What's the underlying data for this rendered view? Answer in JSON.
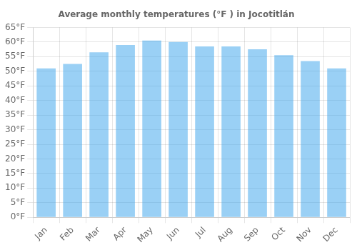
{
  "chart_data": {
    "type": "bar",
    "title": "Average monthly temperatures (°F ) in Jocotitlán",
    "categories": [
      "Jan",
      "Feb",
      "Mar",
      "Apr",
      "May",
      "Jun",
      "Jul",
      "Aug",
      "Sep",
      "Oct",
      "Nov",
      "Dec"
    ],
    "values": [
      51.0,
      52.5,
      56.5,
      59.0,
      60.5,
      60.0,
      58.5,
      58.5,
      57.5,
      55.5,
      53.5,
      51.0
    ],
    "ylim": [
      0,
      65
    ],
    "yticks": [
      {
        "value": 0,
        "label": "0°F"
      },
      {
        "value": 5,
        "label": "5°F"
      },
      {
        "value": 10,
        "label": "10°F"
      },
      {
        "value": 15,
        "label": "15°F"
      },
      {
        "value": 20,
        "label": "20°F"
      },
      {
        "value": 25,
        "label": "25°F"
      },
      {
        "value": 30,
        "label": "30°F"
      },
      {
        "value": 35,
        "label": "35°F"
      },
      {
        "value": 40,
        "label": "40°F"
      },
      {
        "value": 45,
        "label": "45°F"
      },
      {
        "value": 50,
        "label": "50°F"
      },
      {
        "value": 55,
        "label": "55°F"
      },
      {
        "value": 60,
        "label": "60°F"
      },
      {
        "value": 65,
        "label": "65°F"
      }
    ],
    "grid": true
  }
}
